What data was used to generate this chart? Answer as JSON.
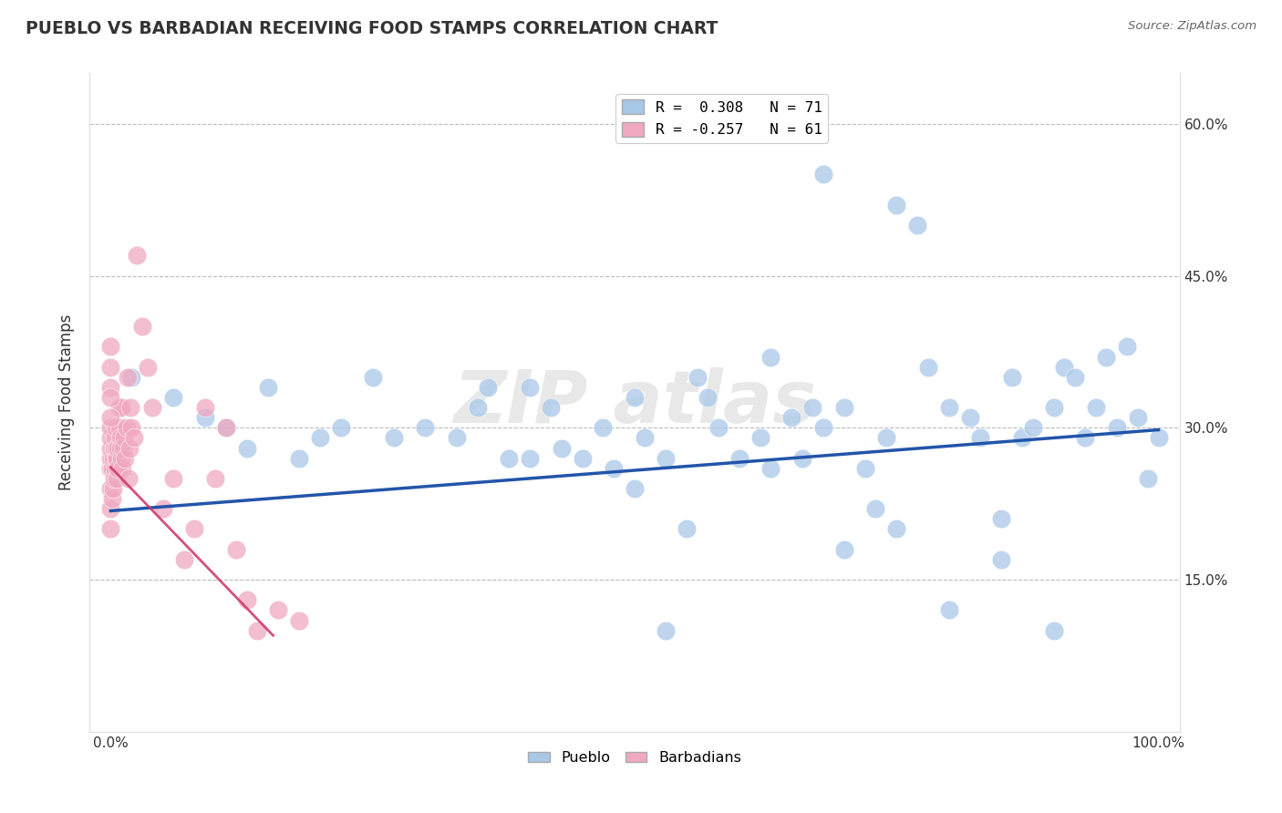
{
  "title": "PUEBLO VS BARBADIAN RECEIVING FOOD STAMPS CORRELATION CHART",
  "source": "Source: ZipAtlas.com",
  "ylabel": "Receiving Food Stamps",
  "xlim": [
    -0.02,
    1.02
  ],
  "ylim": [
    0.0,
    0.65
  ],
  "xticks": [
    0.0,
    0.25,
    0.5,
    0.75,
    1.0
  ],
  "xtick_labels": [
    "0.0%",
    "",
    "",
    "",
    "100.0%"
  ],
  "yticks": [
    0.0,
    0.15,
    0.3,
    0.45,
    0.6
  ],
  "ytick_labels": [
    "",
    "15.0%",
    "30.0%",
    "45.0%",
    "60.0%"
  ],
  "blue_color": "#a8c8e8",
  "pink_color": "#f0a8c0",
  "blue_line_color": "#2255aa",
  "pink_line_color": "#cc3366",
  "legend_blue_label": "R =  0.308   N = 71",
  "legend_pink_label": "R = -0.257   N = 61",
  "legend_bottom_blue": "Pueblo",
  "legend_bottom_pink": "Barbadians",
  "blue_trend_x0": 0.0,
  "blue_trend_y0": 0.218,
  "blue_trend_x1": 1.0,
  "blue_trend_y1": 0.298,
  "pink_trend_x0": 0.0,
  "pink_trend_y0": 0.261,
  "pink_trend_x1": 0.155,
  "pink_trend_y1": 0.095,
  "blue_x": [
    0.02,
    0.06,
    0.09,
    0.11,
    0.13,
    0.15,
    0.18,
    0.2,
    0.22,
    0.25,
    0.27,
    0.3,
    0.33,
    0.35,
    0.36,
    0.38,
    0.4,
    0.4,
    0.42,
    0.43,
    0.45,
    0.47,
    0.48,
    0.5,
    0.51,
    0.53,
    0.55,
    0.57,
    0.58,
    0.6,
    0.62,
    0.63,
    0.65,
    0.66,
    0.67,
    0.68,
    0.7,
    0.72,
    0.74,
    0.75,
    0.77,
    0.78,
    0.8,
    0.82,
    0.83,
    0.85,
    0.86,
    0.87,
    0.88,
    0.9,
    0.91,
    0.92,
    0.93,
    0.94,
    0.95,
    0.96,
    0.97,
    0.98,
    0.99,
    1.0,
    0.5,
    0.63,
    0.56,
    0.7,
    0.75,
    0.8,
    0.85,
    0.9,
    0.68,
    0.73,
    0.53
  ],
  "blue_y": [
    0.35,
    0.33,
    0.31,
    0.3,
    0.28,
    0.34,
    0.27,
    0.29,
    0.3,
    0.35,
    0.29,
    0.3,
    0.29,
    0.32,
    0.34,
    0.27,
    0.27,
    0.34,
    0.32,
    0.28,
    0.27,
    0.3,
    0.26,
    0.24,
    0.29,
    0.27,
    0.2,
    0.33,
    0.3,
    0.27,
    0.29,
    0.26,
    0.31,
    0.27,
    0.32,
    0.3,
    0.32,
    0.26,
    0.29,
    0.52,
    0.5,
    0.36,
    0.32,
    0.31,
    0.29,
    0.21,
    0.35,
    0.29,
    0.3,
    0.32,
    0.36,
    0.35,
    0.29,
    0.32,
    0.37,
    0.3,
    0.38,
    0.31,
    0.25,
    0.29,
    0.33,
    0.37,
    0.35,
    0.18,
    0.2,
    0.12,
    0.17,
    0.1,
    0.55,
    0.22,
    0.1
  ],
  "pink_x": [
    0.0,
    0.0,
    0.0,
    0.0,
    0.0,
    0.0,
    0.0,
    0.0,
    0.001,
    0.001,
    0.002,
    0.002,
    0.003,
    0.003,
    0.004,
    0.004,
    0.005,
    0.005,
    0.005,
    0.006,
    0.006,
    0.007,
    0.007,
    0.008,
    0.008,
    0.009,
    0.009,
    0.01,
    0.01,
    0.011,
    0.012,
    0.013,
    0.014,
    0.015,
    0.016,
    0.017,
    0.018,
    0.019,
    0.02,
    0.022,
    0.025,
    0.03,
    0.035,
    0.04,
    0.05,
    0.06,
    0.07,
    0.08,
    0.09,
    0.1,
    0.11,
    0.12,
    0.13,
    0.14,
    0.16,
    0.18,
    0.0,
    0.0,
    0.0,
    0.0,
    0.0
  ],
  "pink_y": [
    0.24,
    0.26,
    0.27,
    0.28,
    0.29,
    0.3,
    0.22,
    0.2,
    0.23,
    0.26,
    0.24,
    0.27,
    0.25,
    0.28,
    0.26,
    0.29,
    0.27,
    0.28,
    0.3,
    0.25,
    0.27,
    0.28,
    0.26,
    0.3,
    0.32,
    0.29,
    0.28,
    0.27,
    0.32,
    0.26,
    0.28,
    0.29,
    0.27,
    0.3,
    0.35,
    0.25,
    0.28,
    0.32,
    0.3,
    0.29,
    0.47,
    0.4,
    0.36,
    0.32,
    0.22,
    0.25,
    0.17,
    0.2,
    0.32,
    0.25,
    0.3,
    0.18,
    0.13,
    0.1,
    0.12,
    0.11,
    0.34,
    0.38,
    0.36,
    0.33,
    0.31
  ]
}
